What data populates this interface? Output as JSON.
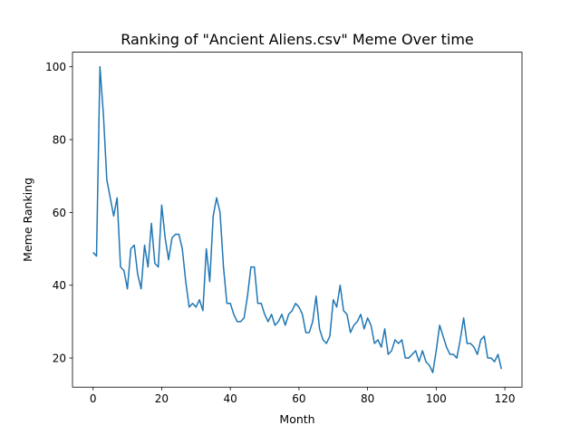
{
  "chart_data": {
    "type": "line",
    "title": "Ranking of \"Ancient Aliens.csv\" Meme Over time",
    "xlabel": "Month",
    "ylabel": "Meme Ranking",
    "xlim": [
      -6,
      125
    ],
    "ylim": [
      12,
      104
    ],
    "xticks": [
      0,
      20,
      40,
      60,
      80,
      100,
      120
    ],
    "yticks": [
      20,
      40,
      60,
      80,
      100
    ],
    "grid": false,
    "series_color": "#1f77b4",
    "series": [
      {
        "x": [
          0,
          1,
          2,
          3,
          4,
          5,
          6,
          7,
          8,
          9,
          10,
          11,
          12,
          13,
          14,
          15,
          16,
          17,
          18,
          19,
          20,
          21,
          22,
          23,
          24,
          25,
          26,
          27,
          28,
          29,
          30,
          31,
          32,
          33,
          34,
          35,
          36,
          37,
          38,
          39,
          40,
          41,
          42,
          43,
          44,
          45,
          46,
          47,
          48,
          49,
          50,
          51,
          52,
          53,
          54,
          55,
          56,
          57,
          58,
          59,
          60,
          61,
          62,
          63,
          64,
          65,
          66,
          67,
          68,
          69,
          70,
          71,
          72,
          73,
          74,
          75,
          76,
          77,
          78,
          79,
          80,
          81,
          82,
          83,
          84,
          85,
          86,
          87,
          88,
          89,
          90,
          91,
          92,
          93,
          94,
          95,
          96,
          97,
          98,
          99,
          100,
          101,
          102,
          103,
          104,
          105,
          106,
          107,
          108,
          109,
          110,
          111,
          112,
          113,
          114,
          115,
          116,
          117,
          118,
          119
        ],
        "y": [
          49,
          48,
          100,
          87,
          69,
          64,
          59,
          64,
          45,
          44,
          39,
          50,
          51,
          43,
          39,
          51,
          45,
          57,
          46,
          45,
          62,
          53,
          47,
          53,
          54,
          54,
          50,
          41,
          34,
          35,
          34,
          36,
          33,
          50,
          41,
          59,
          64,
          60,
          45,
          35,
          35,
          32,
          30,
          30,
          31,
          37,
          45,
          45,
          35,
          35,
          32,
          30,
          32,
          29,
          30,
          32,
          29,
          32,
          33,
          35,
          34,
          32,
          27,
          27,
          30,
          37,
          28,
          25,
          24,
          26,
          36,
          34,
          40,
          33,
          32,
          27,
          29,
          30,
          32,
          28,
          31,
          29,
          24,
          25,
          23,
          28,
          21,
          22,
          25,
          24,
          25,
          20,
          20,
          21,
          22,
          19,
          22,
          19,
          18,
          16,
          22,
          29,
          26,
          23,
          21,
          21,
          20,
          25,
          31,
          24,
          24,
          23,
          21,
          25,
          26,
          20,
          20,
          19,
          21,
          17
        ]
      }
    ]
  }
}
